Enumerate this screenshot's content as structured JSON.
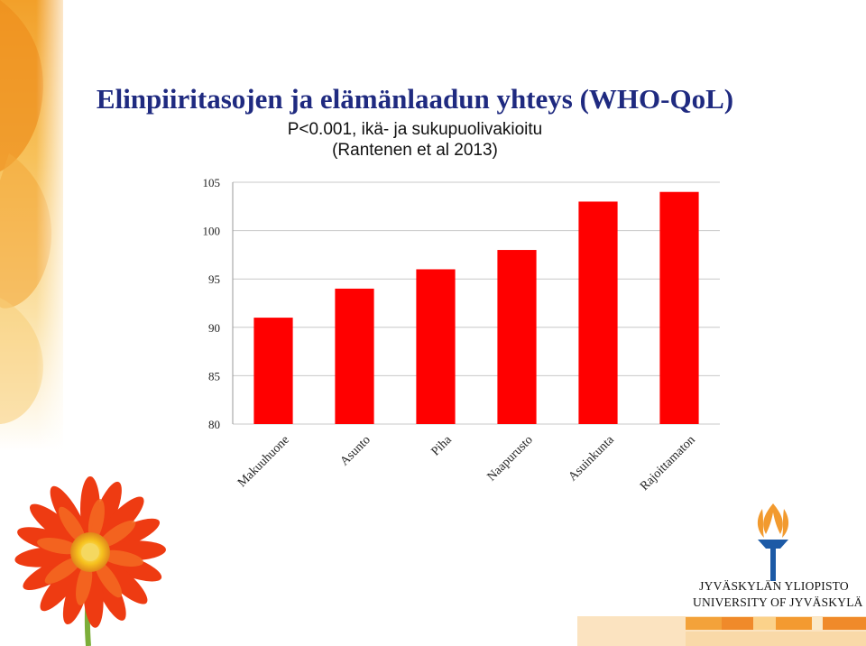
{
  "slide": {
    "title": "Elinpiiritasojen ja elämänlaadun yhteys (WHO-QoL)",
    "subtitle_line1": "P<0.001, ikä- ja sukupuolivakioitu",
    "subtitle_line2": "(Rantenen et al 2013)"
  },
  "logo": {
    "line1": "JYVÄSKYLÄN YLIOPISTO",
    "line2": "UNIVERSITY OF JYVÄSKYLÄ",
    "icon": "torch-icon"
  },
  "colors": {
    "title": "#1f2a80",
    "bar": "#ff0000",
    "grid": "#c8c8c8",
    "accent_orange": "#f29a2e"
  },
  "chart_data": {
    "type": "bar",
    "categories": [
      "Makuuhuone",
      "Asunto",
      "Piha",
      "Naapurusto",
      "Asuinkunta",
      "Rajoittamaton"
    ],
    "values": [
      91,
      94,
      96,
      98,
      103,
      104
    ],
    "ylim": [
      80,
      105
    ],
    "yticks": [
      80,
      85,
      90,
      95,
      100,
      105
    ],
    "grid": true,
    "legend": "none",
    "xlabel": "",
    "ylabel": ""
  }
}
